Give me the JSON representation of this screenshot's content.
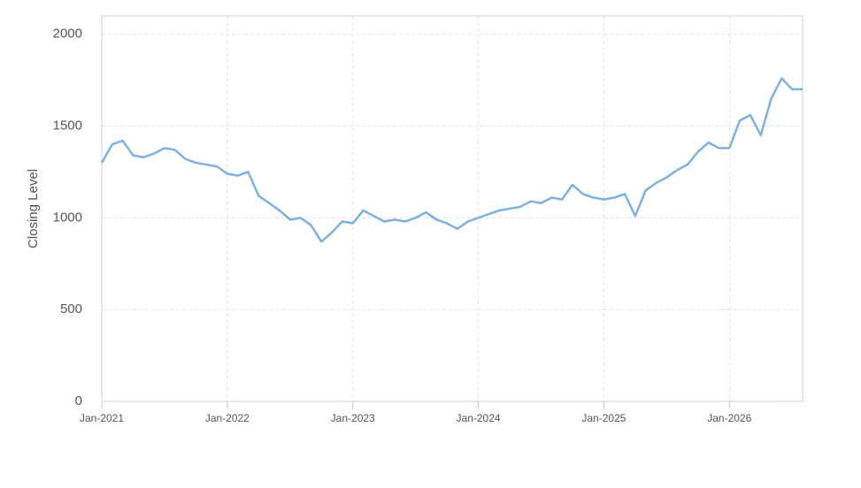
{
  "chart_data": {
    "type": "line",
    "y_label": "Closing Level",
    "x": [
      "2021-01",
      "2021-02",
      "2021-03",
      "2021-04",
      "2021-05",
      "2021-06",
      "2021-07",
      "2021-08",
      "2021-09",
      "2021-10",
      "2021-11",
      "2021-12",
      "2022-01",
      "2022-02",
      "2022-03",
      "2022-04",
      "2022-05",
      "2022-06",
      "2022-07",
      "2022-08",
      "2022-09",
      "2022-10",
      "2022-11",
      "2022-12",
      "2023-01",
      "2023-02",
      "2023-03",
      "2023-04",
      "2023-05",
      "2023-06",
      "2023-07",
      "2023-08",
      "2023-09",
      "2023-10",
      "2023-11",
      "2023-12",
      "2024-01",
      "2024-02",
      "2024-03",
      "2024-04",
      "2024-05",
      "2024-06",
      "2024-07",
      "2024-08",
      "2024-09",
      "2024-10",
      "2024-11",
      "2024-12",
      "2025-01",
      "2025-02",
      "2025-03",
      "2025-04",
      "2025-05",
      "2025-06",
      "2025-07",
      "2025-08",
      "2025-09",
      "2025-10",
      "2025-11",
      "2025-12",
      "2026-01",
      "2026-02",
      "2026-03",
      "2026-04",
      "2026-05",
      "2026-06",
      "2026-07",
      "2026-08"
    ],
    "values": [
      1300,
      1400,
      1420,
      1340,
      1330,
      1350,
      1380,
      1370,
      1320,
      1300,
      1290,
      1280,
      1240,
      1230,
      1250,
      1120,
      1080,
      1040,
      990,
      1000,
      960,
      870,
      920,
      980,
      970,
      1040,
      1010,
      980,
      990,
      980,
      1000,
      1030,
      990,
      970,
      940,
      980,
      1000,
      1020,
      1040,
      1050,
      1060,
      1090,
      1080,
      1110,
      1100,
      1180,
      1130,
      1110,
      1100,
      1110,
      1130,
      1010,
      1150,
      1190,
      1220,
      1260,
      1290,
      1360,
      1410,
      1380,
      1380,
      1530,
      1560,
      1450,
      1650,
      1760,
      1700,
      1700
    ],
    "color": "#7eb0e3",
    "xlim": [
      "2021-01",
      "2026-08"
    ],
    "xticks": [
      {
        "value": "2021-01",
        "label": "Jan-2021"
      },
      {
        "value": "2022-01",
        "label": "Jan-2022"
      },
      {
        "value": "2023-01",
        "label": "Jan-2023"
      },
      {
        "value": "2024-01",
        "label": "Jan-2024"
      },
      {
        "value": "2025-01",
        "label": "Jan-2025"
      },
      {
        "value": "2026-01",
        "label": "Jan-2026"
      }
    ],
    "ylim": [
      0,
      2100
    ],
    "yticks": [
      0,
      500,
      1000,
      1500,
      2000
    ],
    "grid": true
  }
}
